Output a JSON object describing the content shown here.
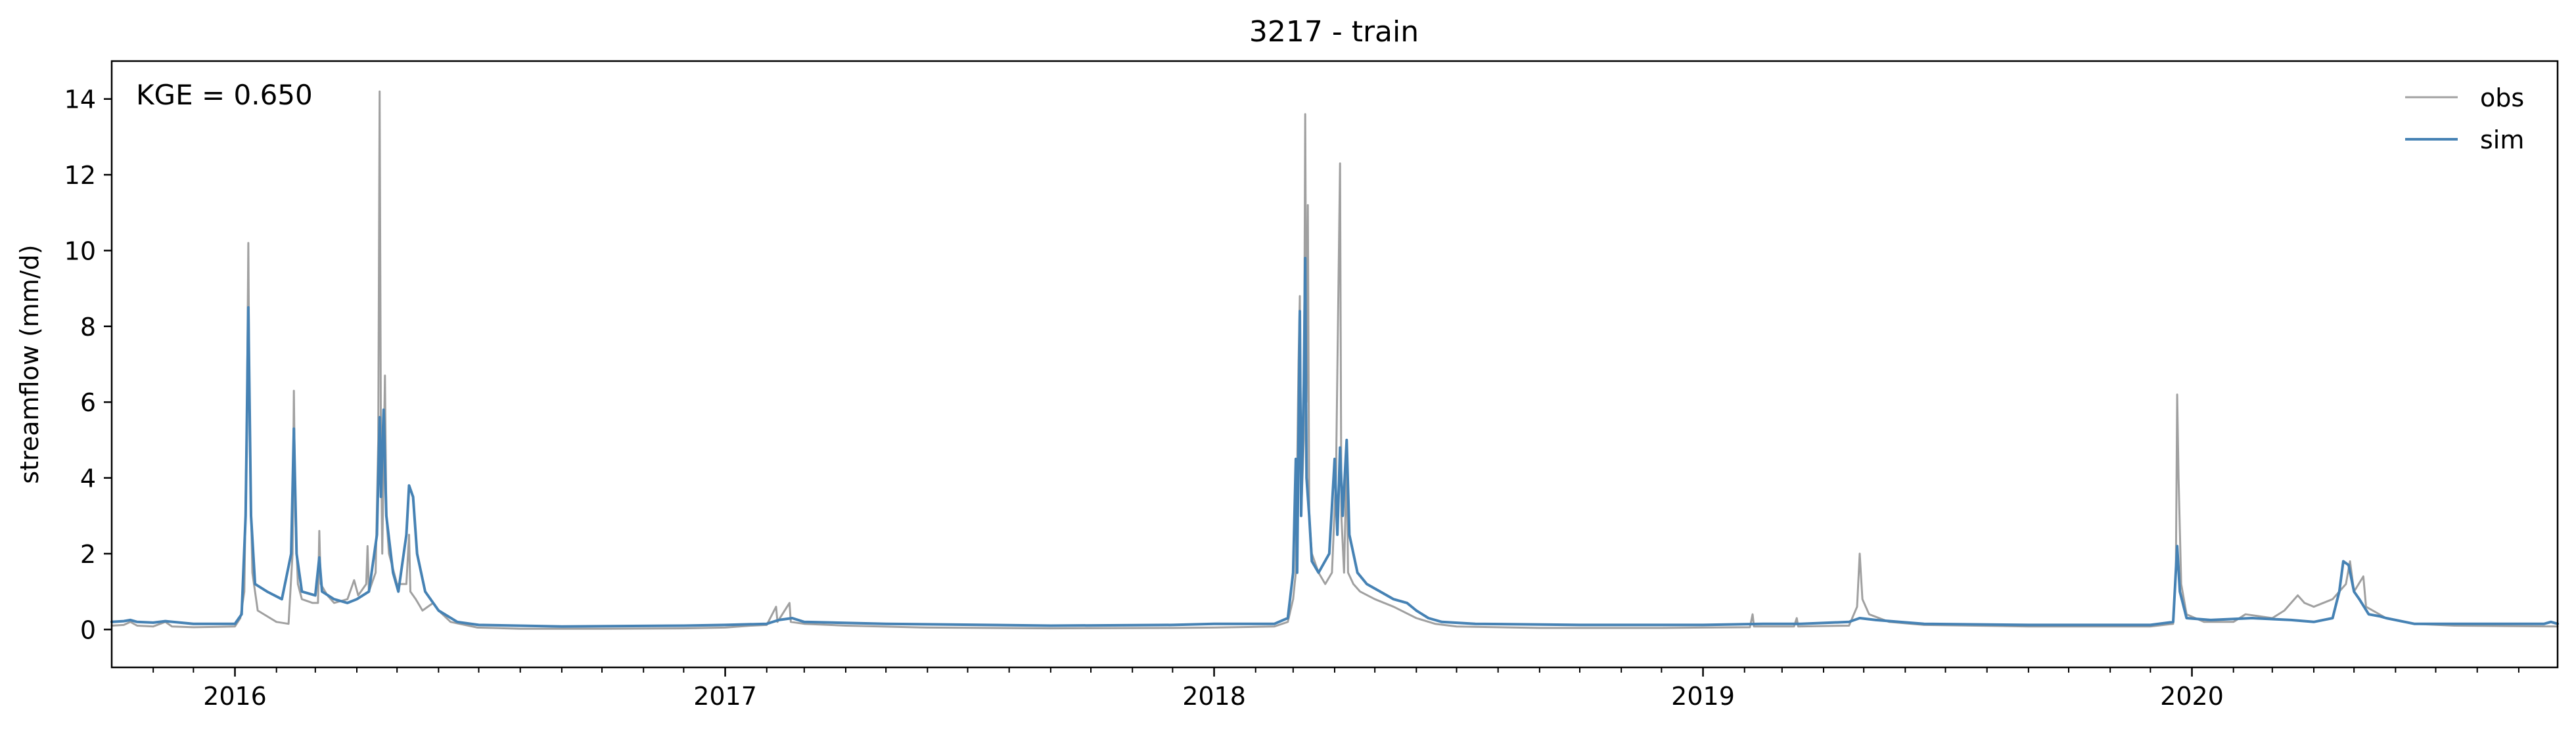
{
  "chart_data": {
    "type": "line",
    "title": "3217 - train",
    "xlabel": "",
    "ylabel": "streamflow (mm/d)",
    "xlim": [
      "2015-10-01",
      "2020-09-30"
    ],
    "ylim": [
      -1,
      15
    ],
    "yticks": [
      0,
      2,
      4,
      6,
      8,
      10,
      12,
      14
    ],
    "xticks": [
      {
        "label": "2016",
        "date": "2016-01-01"
      },
      {
        "label": "2017",
        "date": "2017-01-01"
      },
      {
        "label": "2018",
        "date": "2018-01-01"
      },
      {
        "label": "2019",
        "date": "2019-01-01"
      },
      {
        "label": "2020",
        "date": "2020-01-01"
      }
    ],
    "minor_xticks": [
      "2015-11-01",
      "2015-12-01",
      "2016-02-01",
      "2016-03-01",
      "2016-04-01",
      "2016-05-01",
      "2016-06-01",
      "2016-07-01",
      "2016-08-01",
      "2016-09-01",
      "2016-10-01",
      "2016-11-01",
      "2016-12-01",
      "2017-02-01",
      "2017-03-01",
      "2017-04-01",
      "2017-05-01",
      "2017-06-01",
      "2017-07-01",
      "2017-08-01",
      "2017-09-01",
      "2017-10-01",
      "2017-11-01",
      "2017-12-01",
      "2018-02-01",
      "2018-03-01",
      "2018-04-01",
      "2018-05-01",
      "2018-06-01",
      "2018-07-01",
      "2018-08-01",
      "2018-09-01",
      "2018-10-01",
      "2018-11-01",
      "2018-12-01",
      "2019-02-01",
      "2019-03-01",
      "2019-04-01",
      "2019-05-01",
      "2019-06-01",
      "2019-07-01",
      "2019-08-01",
      "2019-09-01",
      "2019-10-01",
      "2019-11-01",
      "2019-12-01",
      "2020-02-01",
      "2020-03-01",
      "2020-04-01",
      "2020-05-01",
      "2020-06-01",
      "2020-07-01",
      "2020-08-01",
      "2020-09-01"
    ],
    "annotation": "KGE = 0.650",
    "grid": false,
    "legend_position": "top-right",
    "series": [
      {
        "name": "obs",
        "color": "#a0a0a0",
        "points": [
          [
            "2015-10-01",
            0.1
          ],
          [
            "2015-10-10",
            0.12
          ],
          [
            "2015-10-15",
            0.2
          ],
          [
            "2015-10-20",
            0.1
          ],
          [
            "2015-11-01",
            0.08
          ],
          [
            "2015-11-10",
            0.2
          ],
          [
            "2015-11-15",
            0.08
          ],
          [
            "2015-12-01",
            0.06
          ],
          [
            "2015-12-20",
            0.07
          ],
          [
            "2016-01-01",
            0.08
          ],
          [
            "2016-01-05",
            0.3
          ],
          [
            "2016-01-08",
            1.0
          ],
          [
            "2016-01-10",
            6.0
          ],
          [
            "2016-01-11",
            10.2
          ],
          [
            "2016-01-12",
            5.0
          ],
          [
            "2016-01-14",
            1.5
          ],
          [
            "2016-01-18",
            0.5
          ],
          [
            "2016-02-01",
            0.2
          ],
          [
            "2016-02-10",
            0.15
          ],
          [
            "2016-02-13",
            2.0
          ],
          [
            "2016-02-14",
            6.3
          ],
          [
            "2016-02-15",
            3.0
          ],
          [
            "2016-02-17",
            1.2
          ],
          [
            "2016-02-20",
            0.8
          ],
          [
            "2016-02-28",
            0.7
          ],
          [
            "2016-03-03",
            0.7
          ],
          [
            "2016-03-04",
            2.6
          ],
          [
            "2016-03-05",
            1.2
          ],
          [
            "2016-03-10",
            0.9
          ],
          [
            "2016-03-15",
            0.7
          ],
          [
            "2016-03-25",
            0.8
          ],
          [
            "2016-03-30",
            1.3
          ],
          [
            "2016-04-02",
            0.9
          ],
          [
            "2016-04-08",
            1.2
          ],
          [
            "2016-04-09",
            2.2
          ],
          [
            "2016-04-10",
            1.0
          ],
          [
            "2016-04-15",
            1.5
          ],
          [
            "2016-04-17",
            5.0
          ],
          [
            "2016-04-18",
            14.2
          ],
          [
            "2016-04-19",
            5.0
          ],
          [
            "2016-04-20",
            2.0
          ],
          [
            "2016-04-22",
            6.7
          ],
          [
            "2016-04-23",
            3.0
          ],
          [
            "2016-04-25",
            2.0
          ],
          [
            "2016-05-01",
            1.2
          ],
          [
            "2016-05-08",
            1.2
          ],
          [
            "2016-05-10",
            2.5
          ],
          [
            "2016-05-11",
            1.0
          ],
          [
            "2016-05-15",
            0.8
          ],
          [
            "2016-05-20",
            0.5
          ],
          [
            "2016-05-28",
            0.7
          ],
          [
            "2016-06-01",
            0.5
          ],
          [
            "2016-06-10",
            0.2
          ],
          [
            "2016-06-30",
            0.05
          ],
          [
            "2016-08-01",
            0.02
          ],
          [
            "2016-10-01",
            0.02
          ],
          [
            "2016-12-01",
            0.03
          ],
          [
            "2017-01-01",
            0.05
          ],
          [
            "2017-01-20",
            0.1
          ],
          [
            "2017-02-01",
            0.12
          ],
          [
            "2017-02-08",
            0.6
          ],
          [
            "2017-02-09",
            0.2
          ],
          [
            "2017-02-18",
            0.7
          ],
          [
            "2017-02-19",
            0.2
          ],
          [
            "2017-03-01",
            0.15
          ],
          [
            "2017-04-01",
            0.1
          ],
          [
            "2017-06-01",
            0.05
          ],
          [
            "2017-09-01",
            0.03
          ],
          [
            "2017-12-01",
            0.04
          ],
          [
            "2018-01-01",
            0.05
          ],
          [
            "2018-02-15",
            0.08
          ],
          [
            "2018-02-25",
            0.2
          ],
          [
            "2018-03-01",
            0.8
          ],
          [
            "2018-03-03",
            1.5
          ],
          [
            "2018-03-05",
            7.0
          ],
          [
            "2018-03-06",
            8.8
          ],
          [
            "2018-03-07",
            3.0
          ],
          [
            "2018-03-09",
            5.0
          ],
          [
            "2018-03-10",
            13.6
          ],
          [
            "2018-03-11",
            6.0
          ],
          [
            "2018-03-12",
            11.2
          ],
          [
            "2018-03-13",
            3.0
          ],
          [
            "2018-03-15",
            2.0
          ],
          [
            "2018-03-20",
            1.5
          ],
          [
            "2018-03-25",
            1.2
          ],
          [
            "2018-03-30",
            1.5
          ],
          [
            "2018-04-02",
            4.0
          ],
          [
            "2018-04-05",
            12.3
          ],
          [
            "2018-04-06",
            3.0
          ],
          [
            "2018-04-08",
            1.5
          ],
          [
            "2018-04-10",
            4.5
          ],
          [
            "2018-04-11",
            1.5
          ],
          [
            "2018-04-15",
            1.2
          ],
          [
            "2018-04-20",
            1.0
          ],
          [
            "2018-05-01",
            0.8
          ],
          [
            "2018-05-15",
            0.6
          ],
          [
            "2018-06-01",
            0.3
          ],
          [
            "2018-06-15",
            0.15
          ],
          [
            "2018-07-01",
            0.08
          ],
          [
            "2018-09-01",
            0.04
          ],
          [
            "2018-12-01",
            0.04
          ],
          [
            "2019-01-01",
            0.05
          ],
          [
            "2019-02-05",
            0.06
          ],
          [
            "2019-02-07",
            0.4
          ],
          [
            "2019-02-08",
            0.08
          ],
          [
            "2019-03-10",
            0.08
          ],
          [
            "2019-03-12",
            0.3
          ],
          [
            "2019-03-13",
            0.08
          ],
          [
            "2019-04-20",
            0.1
          ],
          [
            "2019-04-26",
            0.6
          ],
          [
            "2019-04-28",
            2.0
          ],
          [
            "2019-04-30",
            0.8
          ],
          [
            "2019-05-05",
            0.4
          ],
          [
            "2019-05-20",
            0.2
          ],
          [
            "2019-06-15",
            0.12
          ],
          [
            "2019-09-01",
            0.08
          ],
          [
            "2019-12-01",
            0.08
          ],
          [
            "2019-12-18",
            0.15
          ],
          [
            "2019-12-20",
            1.5
          ],
          [
            "2019-12-21",
            6.2
          ],
          [
            "2019-12-22",
            4.0
          ],
          [
            "2019-12-24",
            1.2
          ],
          [
            "2019-12-28",
            0.4
          ],
          [
            "2020-01-10",
            0.2
          ],
          [
            "2020-02-01",
            0.2
          ],
          [
            "2020-02-10",
            0.4
          ],
          [
            "2020-03-01",
            0.3
          ],
          [
            "2020-03-10",
            0.5
          ],
          [
            "2020-03-20",
            0.9
          ],
          [
            "2020-03-25",
            0.7
          ],
          [
            "2020-04-01",
            0.6
          ],
          [
            "2020-04-15",
            0.8
          ],
          [
            "2020-04-25",
            1.2
          ],
          [
            "2020-04-28",
            1.8
          ],
          [
            "2020-05-01",
            1.0
          ],
          [
            "2020-05-08",
            1.4
          ],
          [
            "2020-05-10",
            0.6
          ],
          [
            "2020-05-25",
            0.3
          ],
          [
            "2020-06-15",
            0.15
          ],
          [
            "2020-07-15",
            0.1
          ],
          [
            "2020-09-30",
            0.08
          ]
        ]
      },
      {
        "name": "sim",
        "color": "#4682b4",
        "points": [
          [
            "2015-10-01",
            0.2
          ],
          [
            "2015-10-10",
            0.22
          ],
          [
            "2015-10-15",
            0.25
          ],
          [
            "2015-10-20",
            0.2
          ],
          [
            "2015-11-01",
            0.18
          ],
          [
            "2015-11-10",
            0.22
          ],
          [
            "2015-12-01",
            0.15
          ],
          [
            "2015-12-20",
            0.15
          ],
          [
            "2016-01-01",
            0.15
          ],
          [
            "2016-01-06",
            0.4
          ],
          [
            "2016-01-09",
            3.0
          ],
          [
            "2016-01-11",
            8.5
          ],
          [
            "2016-01-13",
            3.0
          ],
          [
            "2016-01-16",
            1.2
          ],
          [
            "2016-01-25",
            1.0
          ],
          [
            "2016-02-05",
            0.8
          ],
          [
            "2016-02-12",
            2.0
          ],
          [
            "2016-02-14",
            5.3
          ],
          [
            "2016-02-16",
            2.0
          ],
          [
            "2016-02-20",
            1.0
          ],
          [
            "2016-03-01",
            0.9
          ],
          [
            "2016-03-04",
            1.9
          ],
          [
            "2016-03-06",
            1.0
          ],
          [
            "2016-03-15",
            0.8
          ],
          [
            "2016-03-25",
            0.7
          ],
          [
            "2016-04-01",
            0.8
          ],
          [
            "2016-04-10",
            1.0
          ],
          [
            "2016-04-16",
            2.5
          ],
          [
            "2016-04-18",
            5.6
          ],
          [
            "2016-04-19",
            3.5
          ],
          [
            "2016-04-21",
            5.8
          ],
          [
            "2016-04-23",
            3.0
          ],
          [
            "2016-04-28",
            1.5
          ],
          [
            "2016-05-02",
            1.0
          ],
          [
            "2016-05-08",
            2.5
          ],
          [
            "2016-05-10",
            3.8
          ],
          [
            "2016-05-13",
            3.5
          ],
          [
            "2016-05-16",
            2.0
          ],
          [
            "2016-05-22",
            1.0
          ],
          [
            "2016-06-01",
            0.5
          ],
          [
            "2016-06-15",
            0.2
          ],
          [
            "2016-07-01",
            0.12
          ],
          [
            "2016-09-01",
            0.08
          ],
          [
            "2016-12-01",
            0.1
          ],
          [
            "2017-01-01",
            0.12
          ],
          [
            "2017-02-01",
            0.15
          ],
          [
            "2017-02-10",
            0.25
          ],
          [
            "2017-02-20",
            0.3
          ],
          [
            "2017-03-01",
            0.2
          ],
          [
            "2017-05-01",
            0.15
          ],
          [
            "2017-09-01",
            0.1
          ],
          [
            "2017-12-01",
            0.12
          ],
          [
            "2018-01-01",
            0.15
          ],
          [
            "2018-02-15",
            0.15
          ],
          [
            "2018-02-25",
            0.3
          ],
          [
            "2018-03-01",
            1.5
          ],
          [
            "2018-03-03",
            4.5
          ],
          [
            "2018-03-04",
            1.5
          ],
          [
            "2018-03-06",
            8.4
          ],
          [
            "2018-03-07",
            3.0
          ],
          [
            "2018-03-09",
            6.5
          ],
          [
            "2018-03-10",
            9.8
          ],
          [
            "2018-03-11",
            4.0
          ],
          [
            "2018-03-13",
            3.0
          ],
          [
            "2018-03-15",
            1.8
          ],
          [
            "2018-03-20",
            1.5
          ],
          [
            "2018-03-28",
            2.0
          ],
          [
            "2018-04-01",
            4.5
          ],
          [
            "2018-04-03",
            2.5
          ],
          [
            "2018-04-05",
            4.8
          ],
          [
            "2018-04-07",
            3.0
          ],
          [
            "2018-04-10",
            5.0
          ],
          [
            "2018-04-12",
            2.5
          ],
          [
            "2018-04-18",
            1.5
          ],
          [
            "2018-04-25",
            1.2
          ],
          [
            "2018-05-05",
            1.0
          ],
          [
            "2018-05-15",
            0.8
          ],
          [
            "2018-05-25",
            0.7
          ],
          [
            "2018-06-01",
            0.5
          ],
          [
            "2018-06-10",
            0.3
          ],
          [
            "2018-06-20",
            0.2
          ],
          [
            "2018-07-15",
            0.15
          ],
          [
            "2018-10-01",
            0.12
          ],
          [
            "2019-01-01",
            0.12
          ],
          [
            "2019-02-15",
            0.15
          ],
          [
            "2019-03-15",
            0.15
          ],
          [
            "2019-04-20",
            0.2
          ],
          [
            "2019-04-28",
            0.3
          ],
          [
            "2019-05-10",
            0.25
          ],
          [
            "2019-06-15",
            0.15
          ],
          [
            "2019-09-01",
            0.12
          ],
          [
            "2019-12-01",
            0.12
          ],
          [
            "2019-12-18",
            0.2
          ],
          [
            "2019-12-21",
            2.2
          ],
          [
            "2019-12-23",
            1.0
          ],
          [
            "2019-12-28",
            0.3
          ],
          [
            "2020-01-15",
            0.25
          ],
          [
            "2020-02-15",
            0.3
          ],
          [
            "2020-03-15",
            0.25
          ],
          [
            "2020-04-01",
            0.2
          ],
          [
            "2020-04-15",
            0.3
          ],
          [
            "2020-04-20",
            1.0
          ],
          [
            "2020-04-23",
            1.8
          ],
          [
            "2020-04-27",
            1.7
          ],
          [
            "2020-05-01",
            1.0
          ],
          [
            "2020-05-05",
            0.8
          ],
          [
            "2020-05-12",
            0.4
          ],
          [
            "2020-05-20",
            0.35
          ],
          [
            "2020-05-25",
            0.3
          ],
          [
            "2020-06-15",
            0.15
          ],
          [
            "2020-09-20",
            0.15
          ],
          [
            "2020-09-25",
            0.2
          ],
          [
            "2020-09-30",
            0.15
          ]
        ]
      }
    ]
  }
}
